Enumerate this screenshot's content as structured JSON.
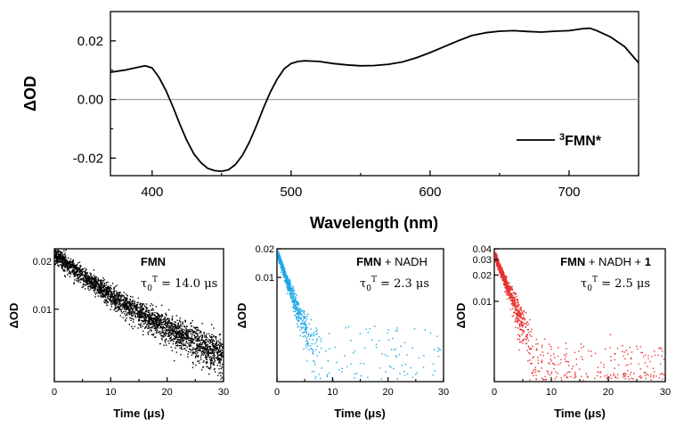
{
  "chart_data": [
    {
      "type": "line",
      "id": "spectrum",
      "xlabel": "Wavelength (nm)",
      "ylabel": "ΔOD",
      "xlim": [
        370,
        750
      ],
      "ylim": [
        -0.026,
        0.03
      ],
      "xticks": [
        400,
        500,
        600,
        700
      ],
      "yticks": [
        -0.02,
        0.0,
        0.02
      ],
      "ytick_labels": [
        "-0.02",
        "0.00",
        "0.02"
      ],
      "legend": {
        "label_sup": "3",
        "label_main": "FMN*",
        "location": "bottom-right"
      },
      "zero_line": true,
      "color": "#000000",
      "series": [
        {
          "name": "3FMN*",
          "x": [
            370,
            380,
            390,
            395,
            400,
            405,
            410,
            415,
            420,
            425,
            430,
            435,
            440,
            445,
            450,
            455,
            460,
            465,
            470,
            475,
            480,
            485,
            490,
            495,
            500,
            505,
            510,
            520,
            530,
            540,
            550,
            560,
            570,
            580,
            590,
            600,
            610,
            620,
            630,
            640,
            650,
            660,
            670,
            680,
            690,
            700,
            710,
            715,
            720,
            730,
            740,
            750
          ],
          "y": [
            0.0093,
            0.01,
            0.011,
            0.0115,
            0.0108,
            0.0075,
            0.003,
            -0.0025,
            -0.0085,
            -0.014,
            -0.0185,
            -0.0215,
            -0.0235,
            -0.0243,
            -0.0245,
            -0.024,
            -0.0222,
            -0.019,
            -0.0145,
            -0.009,
            -0.003,
            0.0025,
            0.007,
            0.0105,
            0.0123,
            0.013,
            0.0132,
            0.013,
            0.0123,
            0.0118,
            0.0115,
            0.0116,
            0.012,
            0.0128,
            0.0142,
            0.016,
            0.018,
            0.02,
            0.0218,
            0.0228,
            0.0233,
            0.0235,
            0.0232,
            0.023,
            0.0233,
            0.0235,
            0.0242,
            0.0243,
            0.0235,
            0.0213,
            0.018,
            0.0125
          ]
        }
      ]
    },
    {
      "type": "scatter",
      "id": "decay-fmn",
      "xlabel": "Time (μs)",
      "ylabel": "ΔOD",
      "xlim": [
        0,
        30
      ],
      "ylim": [
        0.0035,
        0.024
      ],
      "yscale": "log",
      "xticks": [
        0,
        10,
        20,
        30
      ],
      "yticks": [
        0.01,
        0.02
      ],
      "ytick_labels": [
        "0.01",
        "0.02"
      ],
      "color": "#000000",
      "label_bold": "FMN",
      "label_rest": "",
      "tau_label": "τ",
      "tau_sub": "0",
      "tau_sup": "T",
      "tau_value": " = 14.0 μs",
      "model": {
        "A0": 0.019,
        "tau_us": 14.0,
        "offset": 0.003
      }
    },
    {
      "type": "scatter",
      "id": "decay-fmn-nadh",
      "xlabel": "Time (μs)",
      "ylabel": "ΔOD",
      "xlim": [
        0,
        30
      ],
      "ylim": [
        0.0008,
        0.02
      ],
      "yscale": "log",
      "xticks": [
        0,
        10,
        20,
        30
      ],
      "yticks": [
        0.01,
        0.02
      ],
      "ytick_labels": [
        "0.01",
        "0.02"
      ],
      "color": "#1aa7e6",
      "label_bold": "FMN",
      "label_rest": " + NADH",
      "tau_label": "τ",
      "tau_sub": "0",
      "tau_sup": "T",
      "tau_value": " = 2.3 μs",
      "model": {
        "A0": 0.018,
        "tau_us": 2.3,
        "offset": 0.001
      }
    },
    {
      "type": "scatter",
      "id": "decay-fmn-nadh-1",
      "xlabel": "Time (μs)",
      "ylabel": "ΔOD",
      "xlim": [
        0,
        30
      ],
      "ylim": [
        0.0012,
        0.04
      ],
      "yscale": "log",
      "xticks": [
        0,
        10,
        20,
        30
      ],
      "yticks": [
        0.01,
        0.02,
        0.03,
        0.04
      ],
      "ytick_labels": [
        "0.01",
        "0.02",
        "0.03",
        "0.04"
      ],
      "color": "#e8302f",
      "label_bold": "FMN",
      "label_rest": " + NADH + ",
      "label_bold2": "1",
      "tau_label": "τ",
      "tau_sub": "0",
      "tau_sup": "T",
      "tau_value": " = 2.5 μs",
      "model": {
        "A0": 0.034,
        "tau_us": 2.5,
        "offset": 0.001
      }
    }
  ]
}
